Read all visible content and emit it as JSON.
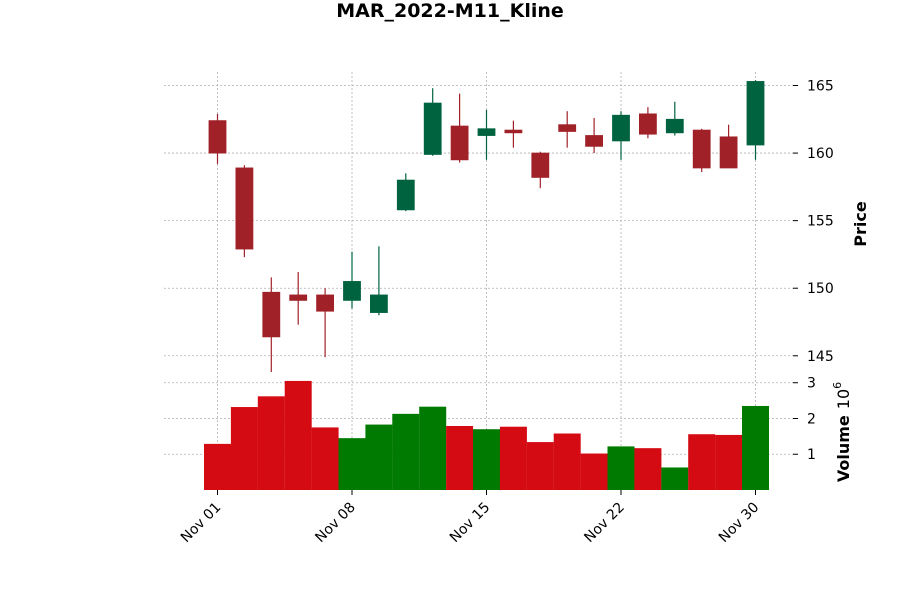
{
  "colors": {
    "up": "#006340",
    "down": "#A02128",
    "vol_up": "#007A00",
    "vol_down": "#D50B13",
    "grid": "#b0b0b0"
  },
  "chart_data": {
    "type": "candlestick",
    "title": "MAR_2022-M11_Kline",
    "price_label": "Price",
    "volume_label": "Volume",
    "volume_multiplier": "10",
    "volume_multiplier_exp": "6",
    "price_ylim": [
      143.8,
      166.0
    ],
    "price_ticks": [
      145,
      150,
      155,
      160,
      165
    ],
    "volume_ylim": [
      0,
      3.3
    ],
    "volume_ticks": [
      1,
      2,
      3
    ],
    "grid": true,
    "x_ticks": [
      {
        "index": 0,
        "label": "Nov 01"
      },
      {
        "index": 5,
        "label": "Nov 08"
      },
      {
        "index": 10,
        "label": "Nov 15"
      },
      {
        "index": 15,
        "label": "Nov 22"
      },
      {
        "index": 20,
        "label": "Nov 30"
      }
    ],
    "dates": [
      "2022-11-01",
      "2022-11-02",
      "2022-11-03",
      "2022-11-04",
      "2022-11-07",
      "2022-11-08",
      "2022-11-09",
      "2022-11-10",
      "2022-11-11",
      "2022-11-14",
      "2022-11-15",
      "2022-11-16",
      "2022-11-17",
      "2022-11-18",
      "2022-11-21",
      "2022-11-22",
      "2022-11-23",
      "2022-11-25",
      "2022-11-28",
      "2022-11-29",
      "2022-11-30"
    ],
    "open": [
      162.4,
      158.9,
      149.7,
      149.5,
      149.5,
      149.1,
      148.2,
      155.8,
      159.9,
      162.0,
      161.3,
      161.7,
      160.0,
      162.1,
      161.3,
      160.9,
      162.9,
      161.5,
      161.7,
      161.2,
      160.6
    ],
    "high": [
      162.9,
      159.1,
      150.8,
      151.2,
      150.0,
      152.7,
      153.1,
      158.5,
      164.8,
      164.4,
      163.2,
      162.4,
      160.1,
      163.1,
      162.6,
      163.1,
      163.4,
      163.8,
      161.8,
      162.1,
      165.4
    ],
    "low": [
      159.2,
      152.3,
      143.8,
      147.3,
      144.9,
      148.5,
      148.0,
      155.7,
      159.8,
      159.3,
      159.5,
      160.4,
      157.4,
      160.4,
      160.0,
      159.5,
      161.1,
      161.3,
      158.6,
      158.9,
      159.5
    ],
    "close": [
      160.0,
      152.9,
      146.4,
      149.1,
      148.3,
      150.5,
      149.5,
      158.0,
      163.7,
      159.5,
      161.8,
      161.5,
      158.2,
      161.6,
      160.5,
      162.8,
      161.4,
      162.5,
      158.9,
      158.9,
      165.3
    ],
    "volume": [
      1.29,
      2.32,
      2.62,
      3.05,
      1.75,
      1.45,
      1.83,
      2.13,
      2.33,
      1.79,
      1.7,
      1.77,
      1.34,
      1.58,
      1.02,
      1.22,
      1.17,
      0.63,
      1.56,
      1.54,
      2.35
    ]
  }
}
